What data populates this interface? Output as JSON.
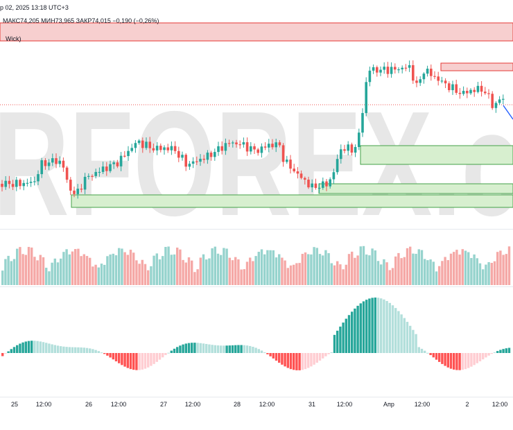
{
  "header": {
    "line1": "р 02, 2025 13:18 UTC+3",
    "ohlc": "МАКС74,205  МИН73,965  ЗАКР74,015  −0,190 (−0,26%)",
    "indicator": "Wick)"
  },
  "watermark": {
    "text": "RFOREX.c"
  },
  "x_axis": {
    "labels": [
      "25",
      "12:00",
      "26",
      "12:00",
      "27",
      "12:00",
      "28",
      "12:00",
      "31",
      "12:00",
      "Апр",
      "12:00",
      "2",
      "12:00"
    ]
  },
  "colors": {
    "up": "#26a69a",
    "down": "#ef5350",
    "vol_up": "#96d3cd",
    "vol_down": "#f5a8a6",
    "zone_red_fill": "#f7cfcf",
    "zone_red_border": "#e53935",
    "zone_green_fill": "#d7efcf",
    "zone_green_border": "#43a047",
    "watermark": "#e7e7e7",
    "watermark_accent": "#f7c9c9",
    "macd_up_strong": "#26a69a",
    "macd_up_weak": "#b2dfdb",
    "macd_down_strong": "#ff5252",
    "macd_down_weak": "#ffcdd2"
  },
  "chart_data": {
    "type": "candlestick",
    "title": "",
    "x_ticks": [
      "25",
      "12:00",
      "26",
      "12:00",
      "27",
      "12:00",
      "28",
      "12:00",
      "31",
      "12:00",
      "Апр",
      "12:00",
      "2",
      "12:00"
    ],
    "last": {
      "high": 74.205,
      "low": 73.965,
      "close": 74.015,
      "change": -0.19,
      "change_pct": -0.26
    },
    "panes": [
      "price",
      "volume",
      "macd_histogram"
    ]
  }
}
